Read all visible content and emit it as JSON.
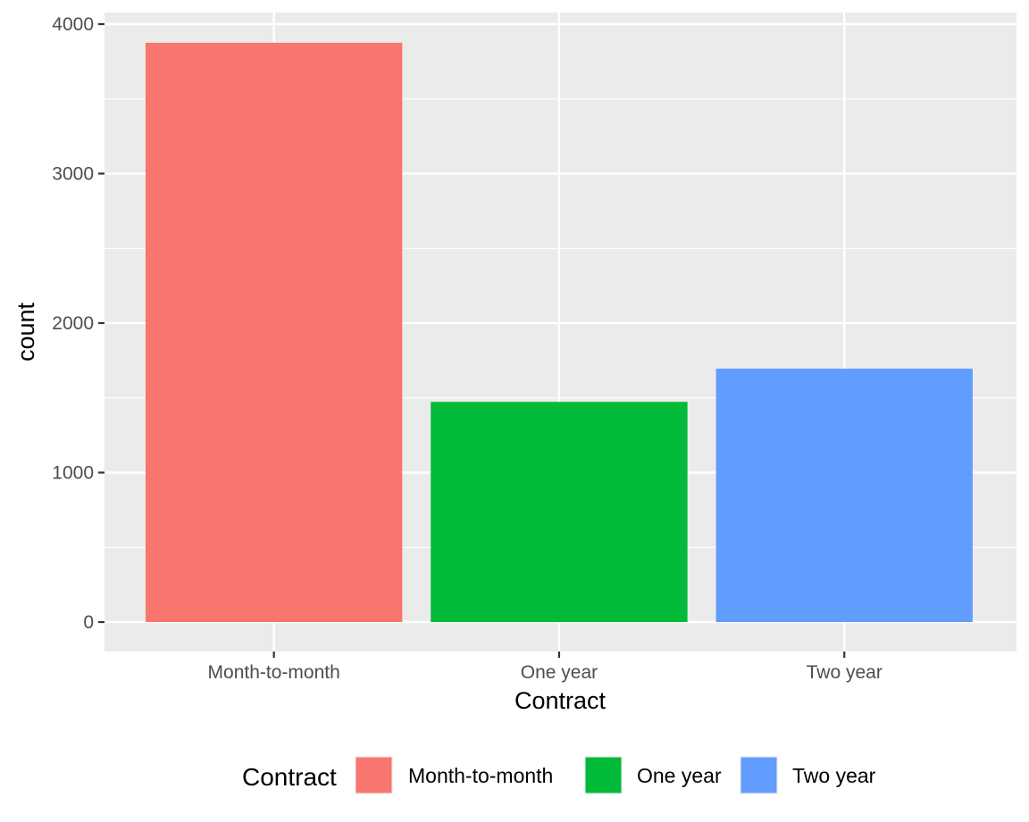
{
  "chart_data": {
    "type": "bar",
    "title": "",
    "xlabel": "Contract",
    "ylabel": "count",
    "categories": [
      "Month-to-month",
      "One year",
      "Two year"
    ],
    "values": [
      3875,
      1473,
      1695
    ],
    "colors": [
      "#F8766D",
      "#00BA38",
      "#619CFF"
    ],
    "ylim": [
      0,
      4000
    ],
    "yticks": [
      0,
      1000,
      2000,
      3000,
      4000
    ],
    "grid": true,
    "panel_background": "#EBEBEB",
    "legend": {
      "title": "Contract",
      "position": "bottom",
      "entries": [
        "Month-to-month",
        "One year",
        "Two year"
      ]
    }
  }
}
